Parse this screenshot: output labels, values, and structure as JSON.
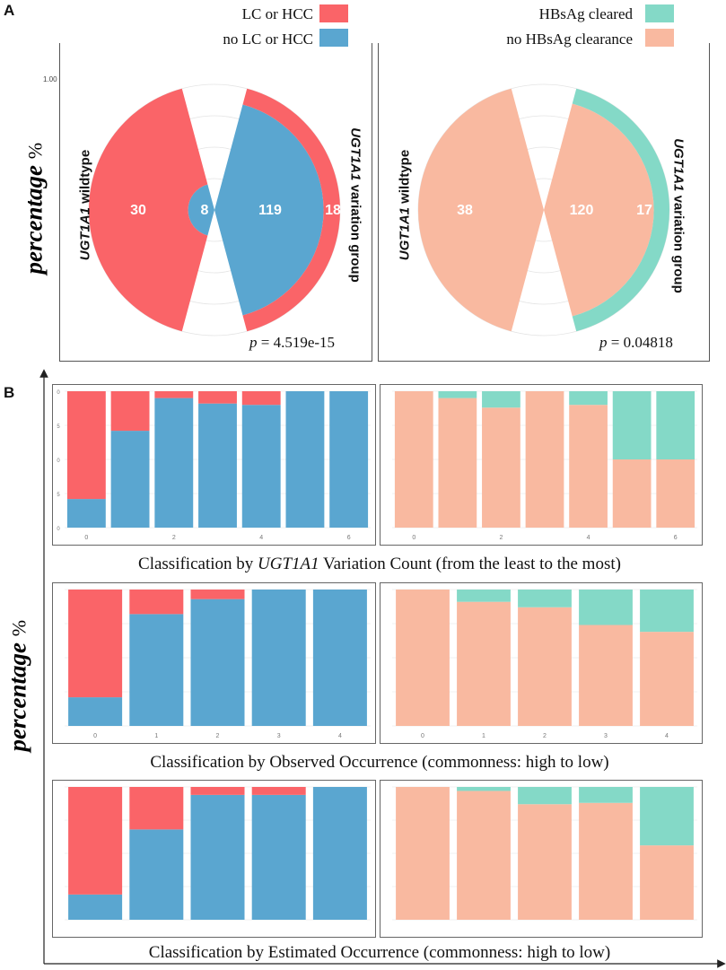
{
  "colors": {
    "lc_hcc": "#fa6468",
    "no_lc_hcc": "#5aa6d0",
    "hbsag_cleared": "#84d9c7",
    "no_hbsag_clearance": "#f9b9a0"
  },
  "panel_a": {
    "letter": "A",
    "legend_left": [
      {
        "label": "LC or HCC",
        "color_key": "lc_hcc"
      },
      {
        "label": "no LC or HCC",
        "color_key": "no_lc_hcc"
      }
    ],
    "legend_right": [
      {
        "label": "HBsAg cleared",
        "color_key": "hbsag_cleared"
      },
      {
        "label": "no HBsAg clearance",
        "color_key": "no_hbsag_clearance"
      }
    ],
    "y_label": "percentage",
    "y_label_unit": "%",
    "tick_label": "1.00",
    "left_chart": {
      "wildtype_label_gene": "UGT1A1",
      "wildtype_label_rest": "wildtype",
      "variation_label_gene": "UGT1A1",
      "variation_label_rest": "variation group",
      "p_label": "p",
      "p_value": "= 4.519e-15"
    },
    "right_chart": {
      "wildtype_label_gene": "UGT1A1",
      "wildtype_label_rest": "wildtype",
      "variation_label_gene": "UGT1A1",
      "variation_label_rest": "variation group",
      "p_label": "p",
      "p_value": "= 0.04818"
    }
  },
  "panel_b": {
    "letter": "B",
    "y_label": "percentage",
    "y_label_unit": "%",
    "caption1_prefix": "Classification by ",
    "caption1_gene": "UGT1A1",
    "caption1_suffix": " Variation Count (from the least to the most)",
    "caption2": "Classification by Observed Occurrence (commonness: high to low)",
    "caption3": "Classification by Estimated Occurrence (commonness: high to low)"
  },
  "chart_data": [
    {
      "type": "pie",
      "id": "polar_lc_hcc",
      "title": "",
      "groups": [
        "UGT1A1 wildtype",
        "UGT1A1 variation group"
      ],
      "series": [
        {
          "name": "LC or HCC",
          "values": [
            30,
            18
          ]
        },
        {
          "name": "no LC or HCC",
          "values": [
            8,
            119
          ]
        }
      ],
      "radial_max": 1.0,
      "radial_tick": "1.00",
      "p_value": "4.519e-15"
    },
    {
      "type": "pie",
      "id": "polar_hbsag",
      "title": "",
      "groups": [
        "UGT1A1 wildtype",
        "UGT1A1 variation group"
      ],
      "series": [
        {
          "name": "HBsAg cleared",
          "values": [
            0,
            17
          ]
        },
        {
          "name": "no HBsAg clearance",
          "values": [
            38,
            120
          ]
        }
      ],
      "radial_max": 1.0,
      "p_value": "0.04818"
    },
    {
      "type": "bar",
      "id": "b1_lc",
      "stacked": true,
      "categories": [
        "0",
        "1",
        "2",
        "3",
        "4",
        "5",
        "6"
      ],
      "tick_labels": [
        "0",
        "",
        "2",
        "",
        "4",
        "",
        "6"
      ],
      "y_ticks": [
        "0",
        "5",
        "0",
        "5",
        "0"
      ],
      "series": [
        {
          "name": "no LC or HCC",
          "values": [
            0.21,
            0.71,
            0.95,
            0.91,
            0.9,
            1.0,
            1.0
          ]
        },
        {
          "name": "LC or HCC",
          "values": [
            0.79,
            0.29,
            0.05,
            0.09,
            0.1,
            0.0,
            0.0
          ]
        }
      ],
      "ylim": [
        0,
        1
      ]
    },
    {
      "type": "bar",
      "id": "b1_hbsag",
      "stacked": true,
      "categories": [
        "0",
        "1",
        "2",
        "3",
        "4",
        "5",
        "6"
      ],
      "tick_labels": [
        "0",
        "",
        "2",
        "",
        "4",
        "",
        "6"
      ],
      "series": [
        {
          "name": "no HBsAg clearance",
          "values": [
            1.0,
            0.95,
            0.88,
            1.0,
            0.9,
            0.5,
            0.5
          ]
        },
        {
          "name": "HBsAg cleared",
          "values": [
            0.0,
            0.05,
            0.12,
            0.0,
            0.1,
            0.5,
            0.5
          ]
        }
      ],
      "ylim": [
        0,
        1
      ]
    },
    {
      "type": "bar",
      "id": "b2_lc",
      "stacked": true,
      "categories": [
        "0",
        "1",
        "2",
        "3",
        "4"
      ],
      "tick_labels": [
        "0",
        "1",
        "2",
        "3",
        "4"
      ],
      "y_ticks": [
        "",
        "",
        "",
        "",
        ""
      ],
      "series": [
        {
          "name": "no LC or HCC",
          "values": [
            0.21,
            0.82,
            0.93,
            1.0,
            1.0
          ]
        },
        {
          "name": "LC or HCC",
          "values": [
            0.79,
            0.18,
            0.07,
            0.0,
            0.0
          ]
        }
      ],
      "ylim": [
        0,
        1
      ]
    },
    {
      "type": "bar",
      "id": "b2_hbsag",
      "stacked": true,
      "categories": [
        "0",
        "1",
        "2",
        "3",
        "4"
      ],
      "tick_labels": [
        "0",
        "1",
        "2",
        "3",
        "4"
      ],
      "series": [
        {
          "name": "no HBsAg clearance",
          "values": [
            1.0,
            0.91,
            0.87,
            0.74,
            0.69
          ]
        },
        {
          "name": "HBsAg cleared",
          "values": [
            0.0,
            0.09,
            0.13,
            0.26,
            0.31
          ]
        }
      ],
      "ylim": [
        0,
        1
      ]
    },
    {
      "type": "bar",
      "id": "b3_lc",
      "stacked": true,
      "categories": [
        "1",
        "2",
        "3",
        "4",
        "5"
      ],
      "tick_labels": [
        "",
        "",
        "",
        "",
        ""
      ],
      "series": [
        {
          "name": "no LC or HCC",
          "values": [
            0.19,
            0.68,
            0.94,
            0.94,
            1.0
          ]
        },
        {
          "name": "LC or HCC",
          "values": [
            0.81,
            0.32,
            0.06,
            0.06,
            0.0
          ]
        }
      ],
      "ylim": [
        0,
        1
      ]
    },
    {
      "type": "bar",
      "id": "b3_hbsag",
      "stacked": true,
      "categories": [
        "1",
        "2",
        "3",
        "4",
        "5"
      ],
      "tick_labels": [
        "",
        "",
        "",
        "",
        ""
      ],
      "series": [
        {
          "name": "no HBsAg clearance",
          "values": [
            1.0,
            0.97,
            0.87,
            0.88,
            0.56
          ]
        },
        {
          "name": "HBsAg cleared",
          "values": [
            0.0,
            0.03,
            0.13,
            0.12,
            0.44
          ]
        }
      ],
      "ylim": [
        0,
        1
      ]
    }
  ]
}
